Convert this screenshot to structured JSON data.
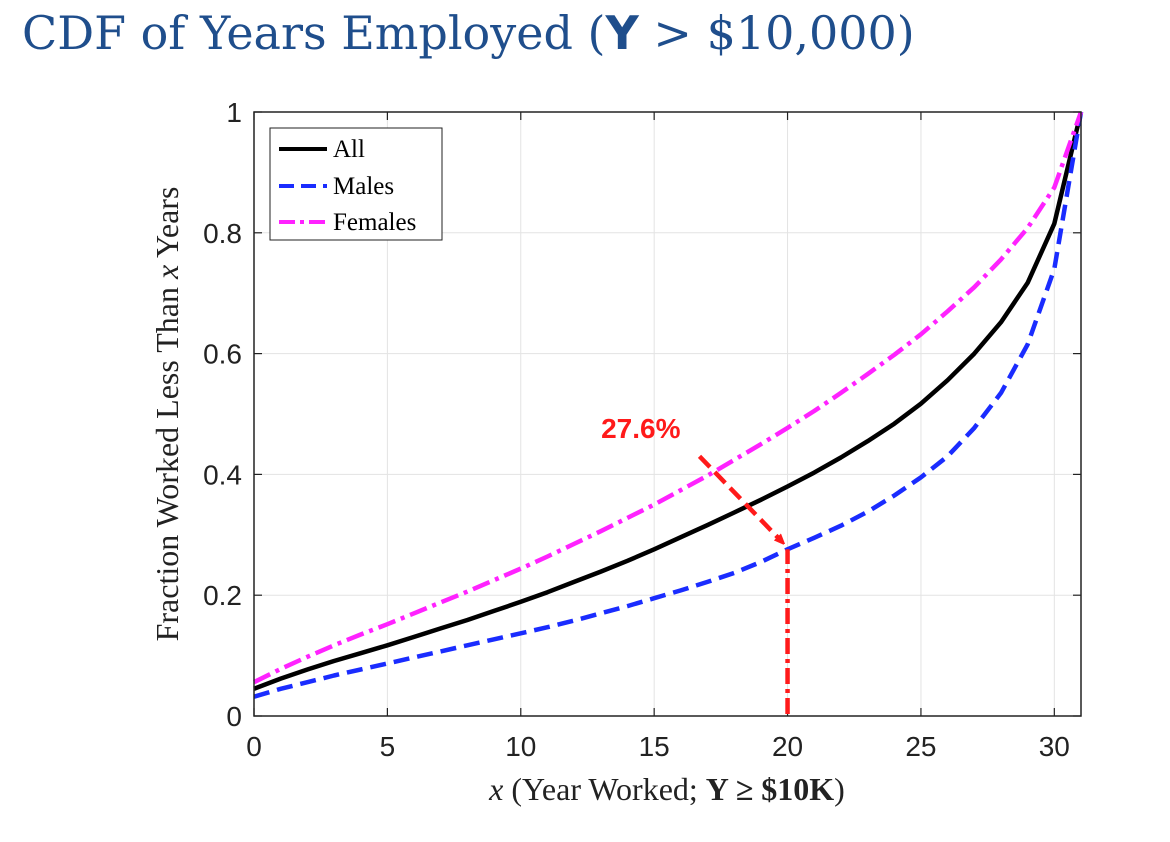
{
  "slide": {
    "title_prefix": "CDF of Years Employed (",
    "title_var": "Y",
    "title_suffix": " > $10,000)"
  },
  "chart_data": {
    "type": "line",
    "xlabel": "x (Year Worked; Y ≥ $10K)",
    "xlabel_parts": {
      "var": "x",
      "open": " (Year Worked; ",
      "bold": "Y ≥ $10K",
      "close": ")"
    },
    "ylabel": "Fraction Worked Less Than x Years",
    "ylabel_parts": {
      "pre": "Fraction Worked Less Than ",
      "var": "x",
      "post": " Years"
    },
    "xlim": [
      0,
      31
    ],
    "ylim": [
      0,
      1
    ],
    "xticks": [
      0,
      5,
      10,
      15,
      20,
      25,
      30
    ],
    "yticks": [
      0,
      0.2,
      0.4,
      0.6,
      0.8,
      1
    ],
    "ytick_labels": [
      "0",
      "0.2",
      "0.4",
      "0.6",
      "0.8",
      "1"
    ],
    "grid": true,
    "legend_position": "top-left",
    "series": [
      {
        "name": "All",
        "color": "#000000",
        "style": "solid",
        "x": [
          0,
          1,
          2,
          3,
          4,
          5,
          6,
          7,
          8,
          9,
          10,
          11,
          12,
          13,
          14,
          15,
          16,
          17,
          18,
          19,
          20,
          21,
          22,
          23,
          24,
          25,
          26,
          27,
          28,
          29,
          30,
          31
        ],
        "y": [
          0.045,
          0.062,
          0.077,
          0.091,
          0.104,
          0.117,
          0.131,
          0.145,
          0.159,
          0.174,
          0.189,
          0.205,
          0.222,
          0.239,
          0.257,
          0.276,
          0.296,
          0.316,
          0.337,
          0.358,
          0.38,
          0.403,
          0.428,
          0.455,
          0.484,
          0.517,
          0.556,
          0.6,
          0.652,
          0.717,
          0.815,
          1.0
        ]
      },
      {
        "name": "Males",
        "color": "#1a2cff",
        "style": "dashed",
        "x": [
          0,
          1,
          2,
          3,
          4,
          5,
          6,
          7,
          8,
          9,
          10,
          11,
          12,
          13,
          14,
          15,
          16,
          17,
          18,
          19,
          20,
          21,
          22,
          23,
          24,
          25,
          26,
          27,
          28,
          29,
          30,
          31
        ],
        "y": [
          0.032,
          0.045,
          0.056,
          0.067,
          0.077,
          0.087,
          0.097,
          0.107,
          0.117,
          0.127,
          0.137,
          0.147,
          0.158,
          0.17,
          0.182,
          0.195,
          0.208,
          0.222,
          0.237,
          0.255,
          0.276,
          0.295,
          0.315,
          0.338,
          0.365,
          0.395,
          0.43,
          0.477,
          0.535,
          0.615,
          0.74,
          1.0
        ]
      },
      {
        "name": "Females",
        "color": "#ff22ff",
        "style": "dashdot",
        "x": [
          0,
          1,
          2,
          3,
          4,
          5,
          6,
          7,
          8,
          9,
          10,
          11,
          12,
          13,
          14,
          15,
          16,
          17,
          18,
          19,
          20,
          21,
          22,
          23,
          24,
          25,
          26,
          27,
          28,
          29,
          30,
          31
        ],
        "y": [
          0.056,
          0.078,
          0.098,
          0.117,
          0.135,
          0.152,
          0.17,
          0.188,
          0.206,
          0.225,
          0.244,
          0.264,
          0.285,
          0.306,
          0.328,
          0.35,
          0.374,
          0.398,
          0.424,
          0.45,
          0.477,
          0.505,
          0.535,
          0.566,
          0.598,
          0.632,
          0.67,
          0.71,
          0.756,
          0.808,
          0.875,
          1.0
        ]
      }
    ],
    "annotation": {
      "text": "27.6%",
      "color": "#ff1a1a",
      "point": [
        20,
        0.276
      ],
      "label_at": [
        14.5,
        0.46
      ],
      "arrow_from": [
        16.7,
        0.43
      ]
    }
  }
}
